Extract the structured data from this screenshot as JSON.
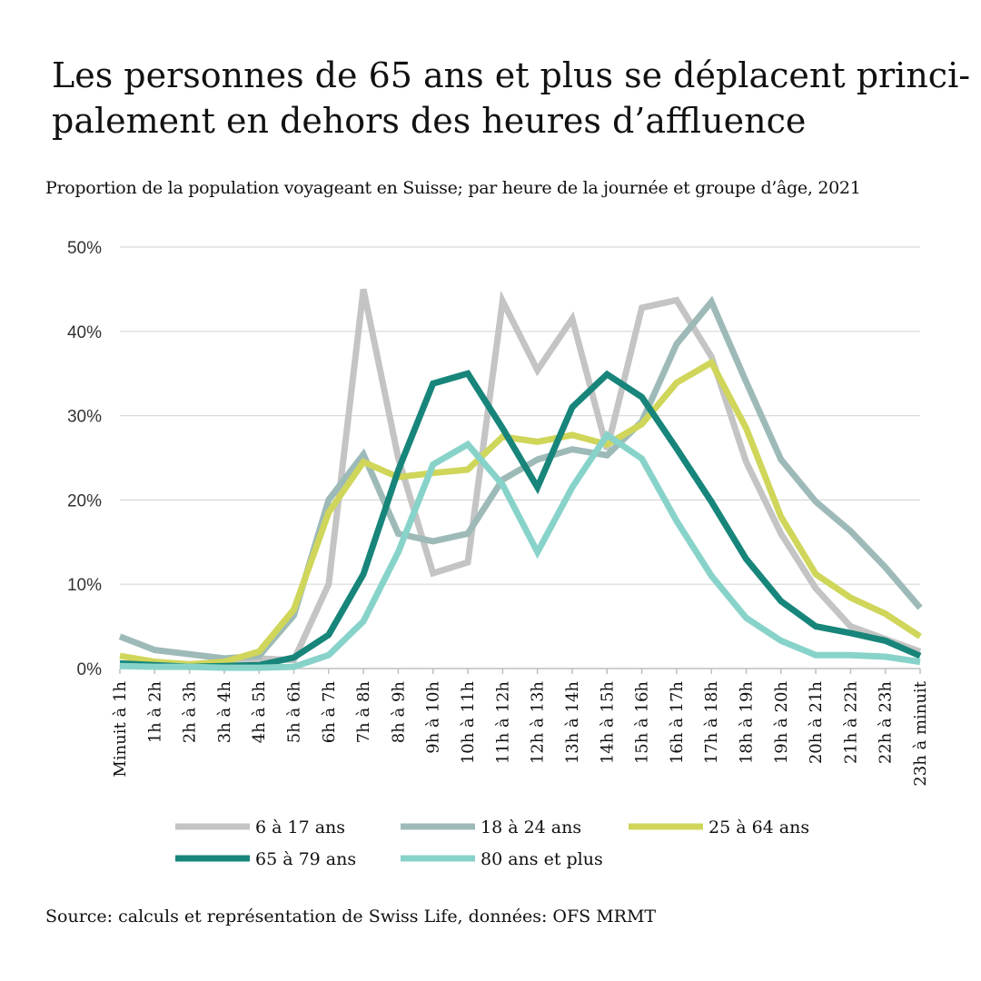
{
  "header": {
    "title_line1": "Les personnes de 65 ans et plus se déplacent princi-",
    "title_line2": "palement en dehors des heures d’affluence",
    "subtitle": "Proportion de la population voyageant en Suisse; par heure de la journée et groupe d’âge, 2021"
  },
  "footer": {
    "source": "Source: calculs et représentation de Swiss Life, données: OFS MRMT"
  },
  "chart_data": {
    "type": "line",
    "title": "Les personnes de 65 ans et plus se déplacent principalement en dehors des heures d’affluence",
    "subtitle": "Proportion de la population voyageant en Suisse; par heure de la journée et groupe d’âge, 2021",
    "xlabel": "",
    "ylabel": "",
    "ylim": [
      0,
      50
    ],
    "yticks": [
      0,
      10,
      20,
      30,
      40,
      50
    ],
    "ytick_labels": [
      "0%",
      "10%",
      "20%",
      "30%",
      "40%",
      "50%"
    ],
    "grid": true,
    "legend_position": "bottom",
    "categories": [
      "Minuit à 1h",
      "1h à 2h",
      "2h à 3h",
      "3h à 4h",
      "4h à 5h",
      "5h à 6h",
      "6h à 7h",
      "7h à 8h",
      "8h à 9h",
      "9h à 10h",
      "10h à 11h",
      "11h à 12h",
      "12h à 13h",
      "13h à 14h",
      "14h à 15h",
      "15h à 16h",
      "16h à 17h",
      "17h à 18h",
      "18h à 19h",
      "19h à 20h",
      "20h à 21h",
      "21h à 22h",
      "22h à 23h",
      "23h à minuit"
    ],
    "series": [
      {
        "name": "6 à 17 ans",
        "color": "#c4c4c4",
        "values": [
          0.5,
          0.3,
          0.3,
          0.3,
          1.2,
          1.0,
          10.0,
          45.0,
          25.0,
          11.3,
          12.6,
          43.6,
          35.4,
          41.5,
          26.0,
          42.8,
          43.7,
          37.0,
          24.5,
          16.0,
          9.5,
          5.0,
          3.5,
          2.0
        ]
      },
      {
        "name": "18 à 24 ans",
        "color": "#9dbab8",
        "values": [
          3.8,
          2.2,
          1.7,
          1.2,
          1.5,
          6.3,
          20.0,
          25.4,
          16.0,
          15.1,
          16.0,
          22.4,
          24.8,
          26.0,
          25.3,
          29.3,
          38.5,
          43.5,
          34.0,
          24.8,
          19.8,
          16.3,
          12.0,
          7.2
        ]
      },
      {
        "name": "25 à 64 ans",
        "color": "#cfd65a",
        "values": [
          1.5,
          0.8,
          0.5,
          0.8,
          2.0,
          7.0,
          18.5,
          24.5,
          22.7,
          23.2,
          23.6,
          27.5,
          26.9,
          27.7,
          26.6,
          29.0,
          33.9,
          36.3,
          28.5,
          18.0,
          11.2,
          8.4,
          6.5,
          3.8
        ]
      },
      {
        "name": "65 à 79 ans",
        "color": "#17857a",
        "values": [
          0.6,
          0.4,
          0.2,
          0.3,
          0.4,
          1.3,
          4.0,
          11.2,
          23.5,
          33.8,
          35.0,
          28.5,
          21.5,
          31.0,
          34.9,
          32.2,
          26.1,
          19.8,
          13.0,
          8.0,
          5.0,
          4.2,
          3.3,
          1.5
        ]
      },
      {
        "name": "80 ans et plus",
        "color": "#88d3c9",
        "values": [
          0.3,
          0.2,
          0.2,
          0.1,
          0.1,
          0.2,
          1.6,
          5.6,
          13.8,
          24.2,
          26.6,
          21.8,
          13.8,
          21.5,
          27.7,
          24.9,
          17.5,
          11.0,
          6.0,
          3.3,
          1.6,
          1.6,
          1.4,
          0.8
        ]
      }
    ]
  }
}
